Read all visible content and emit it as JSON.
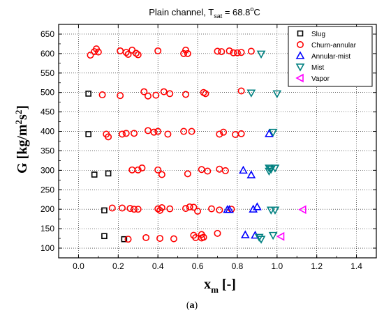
{
  "chart_data": {
    "type": "scatter",
    "title": {
      "prefix": "Plain channel, T",
      "subscript": "sat",
      "middle": " = 68.8",
      "superscript": "o",
      "suffix": "C"
    },
    "xlabel": {
      "main": "x",
      "sub": "m",
      "unit": " [-]"
    },
    "ylabel": {
      "main": "G  [kg/m",
      "sup1": "2",
      "mid": "s",
      "end": "]"
    },
    "caption": {
      "open": "(",
      "letter": "a",
      "close": ")"
    },
    "xlim": [
      -0.1,
      1.5
    ],
    "ylim": [
      75,
      675
    ],
    "xticks": [
      "0.0",
      "0.2",
      "0.4",
      "0.6",
      "0.8",
      "1.0",
      "1.2",
      "1.4"
    ],
    "xtick_values": [
      0.0,
      0.2,
      0.4,
      0.6,
      0.8,
      1.0,
      1.2,
      1.4
    ],
    "yticks": [
      "100",
      "150",
      "200",
      "250",
      "300",
      "350",
      "400",
      "450",
      "500",
      "550",
      "600",
      "650"
    ],
    "ytick_values": [
      100,
      150,
      200,
      250,
      300,
      350,
      400,
      450,
      500,
      550,
      600,
      650
    ],
    "grid": true,
    "legend_position": "top-right",
    "series": [
      {
        "name": "Slug",
        "marker": "square",
        "color": "#000000",
        "points": [
          [
            0.05,
            497
          ],
          [
            0.05,
            393
          ],
          [
            0.08,
            289
          ],
          [
            0.15,
            292
          ],
          [
            0.13,
            197
          ],
          [
            0.13,
            131
          ],
          [
            0.23,
            123
          ]
        ]
      },
      {
        "name": "Churn-annular",
        "marker": "circle",
        "color": "#ff0000",
        "points": [
          [
            0.06,
            596
          ],
          [
            0.08,
            605
          ],
          [
            0.09,
            612
          ],
          [
            0.1,
            604
          ],
          [
            0.21,
            607
          ],
          [
            0.24,
            603
          ],
          [
            0.25,
            598
          ],
          [
            0.27,
            609
          ],
          [
            0.29,
            601
          ],
          [
            0.3,
            597
          ],
          [
            0.4,
            607
          ],
          [
            0.53,
            600
          ],
          [
            0.54,
            609
          ],
          [
            0.55,
            600
          ],
          [
            0.7,
            606
          ],
          [
            0.72,
            605
          ],
          [
            0.76,
            607
          ],
          [
            0.78,
            602
          ],
          [
            0.8,
            602
          ],
          [
            0.82,
            603
          ],
          [
            0.87,
            606
          ],
          [
            0.12,
            494
          ],
          [
            0.21,
            492
          ],
          [
            0.33,
            502
          ],
          [
            0.35,
            491
          ],
          [
            0.39,
            493
          ],
          [
            0.43,
            502
          ],
          [
            0.46,
            497
          ],
          [
            0.54,
            495
          ],
          [
            0.63,
            500
          ],
          [
            0.64,
            497
          ],
          [
            0.82,
            504
          ],
          [
            0.14,
            393
          ],
          [
            0.15,
            386
          ],
          [
            0.22,
            393
          ],
          [
            0.24,
            395
          ],
          [
            0.28,
            395
          ],
          [
            0.35,
            402
          ],
          [
            0.38,
            398
          ],
          [
            0.4,
            400
          ],
          [
            0.45,
            393
          ],
          [
            0.53,
            400
          ],
          [
            0.57,
            400
          ],
          [
            0.71,
            393
          ],
          [
            0.73,
            398
          ],
          [
            0.79,
            392
          ],
          [
            0.82,
            394
          ],
          [
            0.27,
            301
          ],
          [
            0.3,
            301
          ],
          [
            0.32,
            306
          ],
          [
            0.4,
            301
          ],
          [
            0.42,
            289
          ],
          [
            0.55,
            291
          ],
          [
            0.62,
            302
          ],
          [
            0.65,
            298
          ],
          [
            0.71,
            303
          ],
          [
            0.74,
            299
          ],
          [
            0.17,
            203
          ],
          [
            0.22,
            203
          ],
          [
            0.26,
            202
          ],
          [
            0.28,
            200
          ],
          [
            0.3,
            200
          ],
          [
            0.4,
            201
          ],
          [
            0.41,
            197
          ],
          [
            0.42,
            204
          ],
          [
            0.46,
            201
          ],
          [
            0.54,
            202
          ],
          [
            0.56,
            206
          ],
          [
            0.58,
            205
          ],
          [
            0.6,
            195
          ],
          [
            0.67,
            201
          ],
          [
            0.71,
            198
          ],
          [
            0.77,
            200
          ],
          [
            0.25,
            123
          ],
          [
            0.34,
            127
          ],
          [
            0.41,
            125
          ],
          [
            0.48,
            124
          ],
          [
            0.58,
            133
          ],
          [
            0.59,
            127
          ],
          [
            0.62,
            126
          ],
          [
            0.62,
            135
          ],
          [
            0.63,
            128
          ],
          [
            0.7,
            138
          ]
        ]
      },
      {
        "name": "Annular-mist",
        "marker": "triangle-up",
        "color": "#0000ff",
        "points": [
          [
            0.96,
            394
          ],
          [
            0.83,
            300
          ],
          [
            0.87,
            288
          ],
          [
            0.75,
            199
          ],
          [
            0.76,
            199
          ],
          [
            0.88,
            200
          ],
          [
            0.9,
            206
          ],
          [
            0.84,
            134
          ],
          [
            0.89,
            133
          ]
        ]
      },
      {
        "name": "Mist",
        "marker": "triangle-down",
        "color": "#008080",
        "points": [
          [
            0.92,
            599
          ],
          [
            0.87,
            499
          ],
          [
            1.0,
            497
          ],
          [
            0.98,
            398
          ],
          [
            0.96,
            306
          ],
          [
            0.97,
            303
          ],
          [
            0.99,
            306
          ],
          [
            0.96,
            298
          ],
          [
            0.97,
            198
          ],
          [
            0.99,
            198
          ],
          [
            0.92,
            123
          ],
          [
            0.98,
            133
          ],
          [
            0.91,
            128
          ]
        ]
      },
      {
        "name": "Vapor",
        "marker": "triangle-left",
        "color": "#ff00ff",
        "points": [
          [
            1.13,
            199
          ],
          [
            1.02,
            130
          ]
        ]
      }
    ]
  }
}
